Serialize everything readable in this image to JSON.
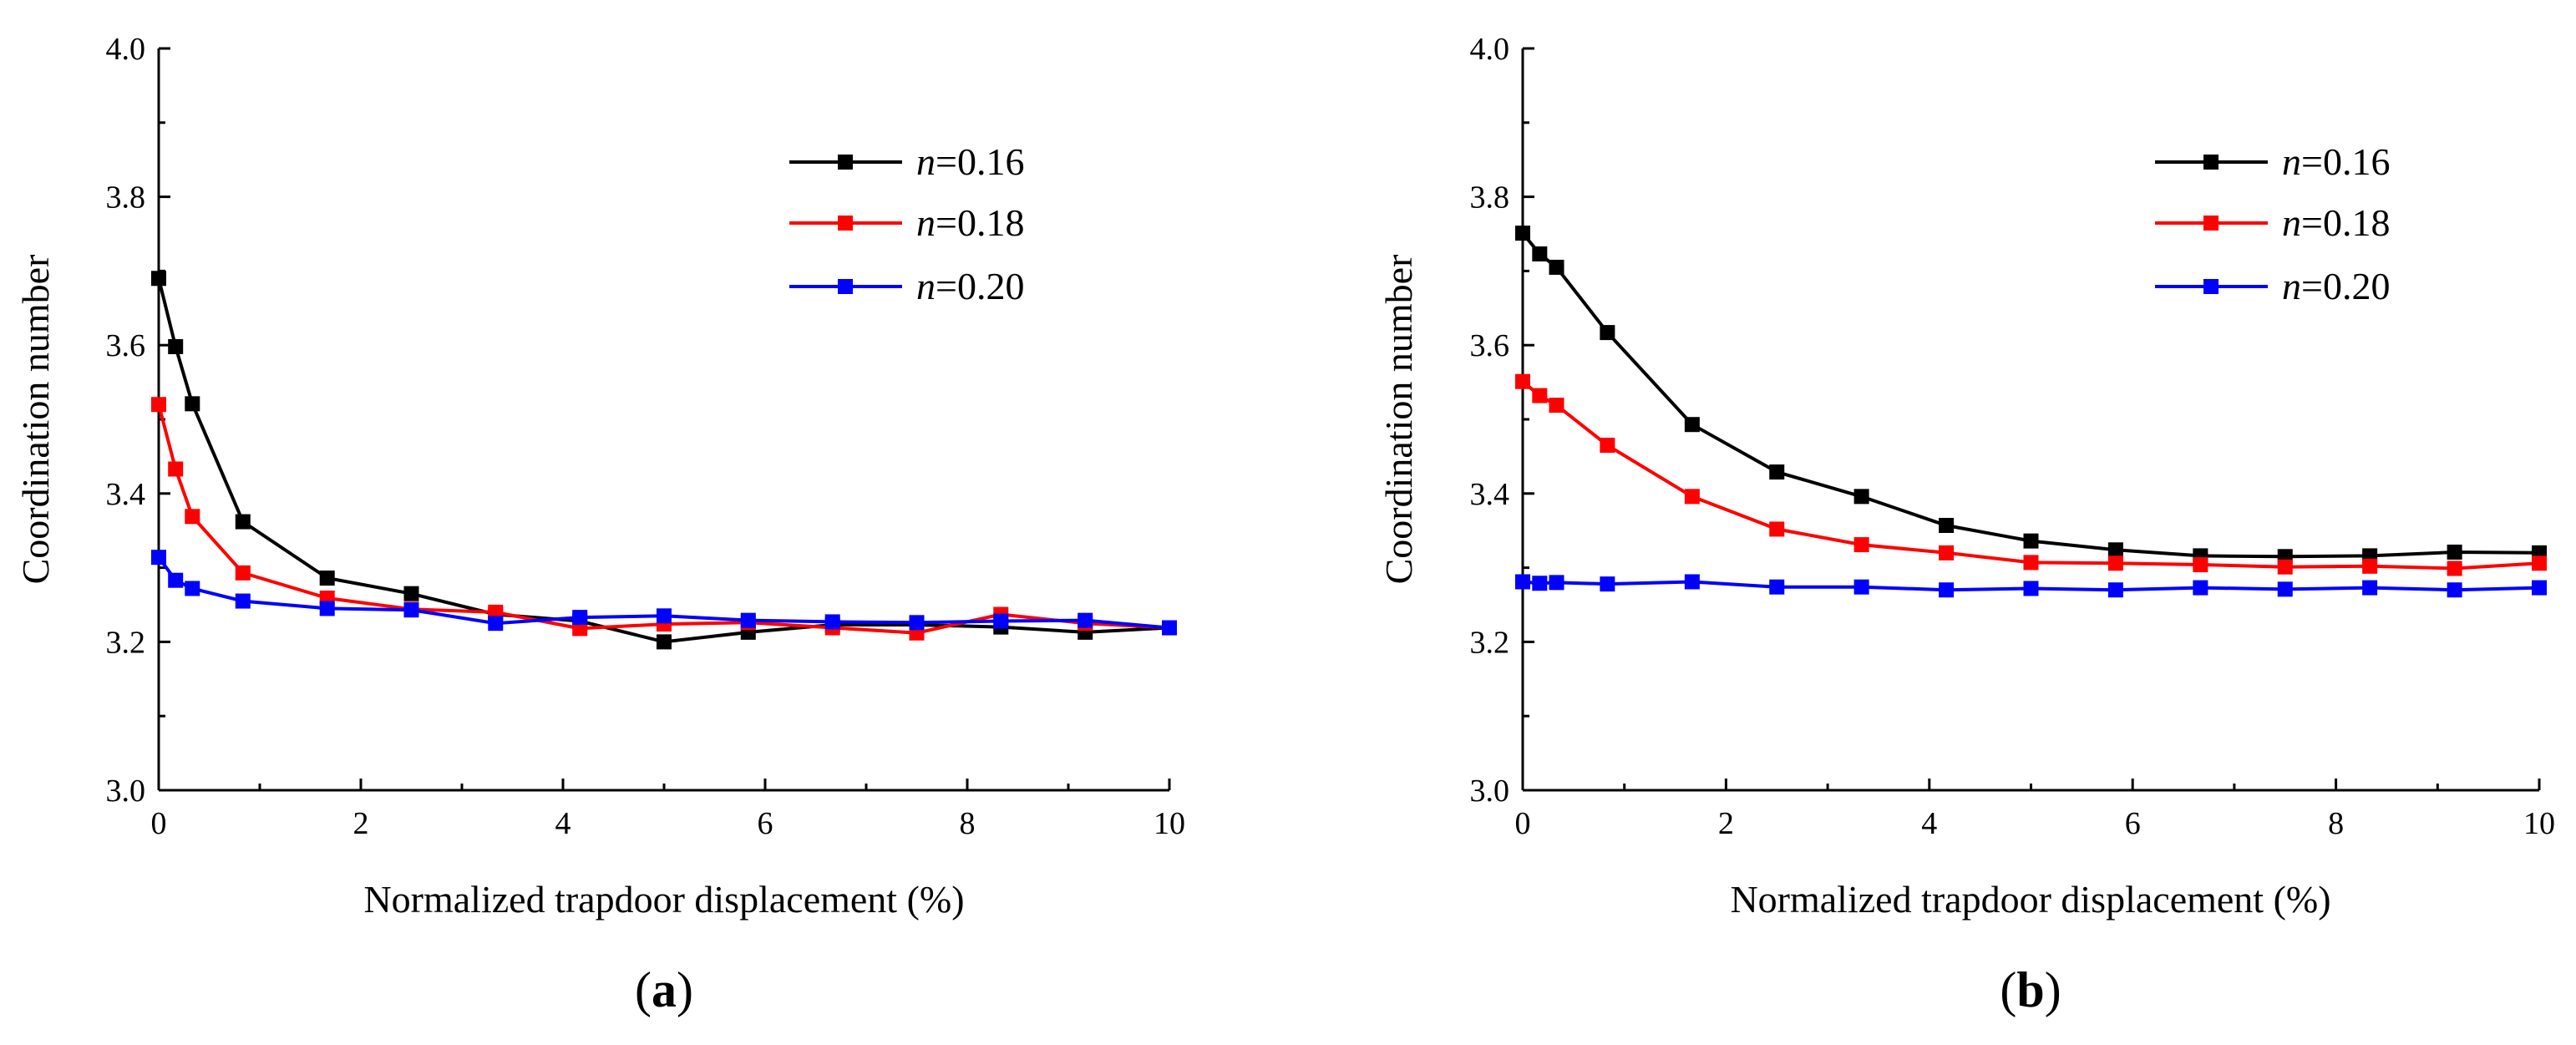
{
  "figure": {
    "panels": [
      {
        "label_open": "(",
        "label_letter": "a",
        "label_close": ")"
      },
      {
        "label_open": "(",
        "label_letter": "b",
        "label_close": ")"
      }
    ]
  },
  "chart_data": [
    {
      "type": "line",
      "panel": "a",
      "xlabel": "Normalized trapdoor displacement (%)",
      "ylabel": "Coordination number",
      "xlim": [
        0,
        10
      ],
      "ylim": [
        3.0,
        4.0
      ],
      "xticks": [
        "0",
        "2",
        "4",
        "6",
        "8",
        "10"
      ],
      "yticks": [
        "3.0",
        "3.2",
        "3.4",
        "3.6",
        "3.8",
        "4.0"
      ],
      "legend_position": "top-right",
      "series": [
        {
          "name_prefix": "n",
          "name_suffix": "=0.16",
          "color": "#000000",
          "x": [
            0,
            0.167,
            0.333,
            0.833,
            1.667,
            2.5,
            3.333,
            4.167,
            5.0,
            5.833,
            6.667,
            7.5,
            8.333,
            9.167,
            10.0
          ],
          "y": [
            3.69,
            3.598,
            3.521,
            3.362,
            3.286,
            3.265,
            3.237,
            3.228,
            3.2,
            3.213,
            3.223,
            3.223,
            3.22,
            3.213,
            3.219
          ]
        },
        {
          "name_prefix": "n",
          "name_suffix": "=0.18",
          "color": "#ff0000",
          "x": [
            0,
            0.167,
            0.333,
            0.833,
            1.667,
            2.5,
            3.333,
            4.167,
            5.0,
            5.833,
            6.667,
            7.5,
            8.333,
            9.167,
            10.0
          ],
          "y": [
            3.52,
            3.433,
            3.369,
            3.293,
            3.259,
            3.244,
            3.24,
            3.218,
            3.224,
            3.226,
            3.219,
            3.212,
            3.237,
            3.225,
            3.219
          ]
        },
        {
          "name_prefix": "n",
          "name_suffix": "=0.20",
          "color": "#0000ff",
          "x": [
            0,
            0.167,
            0.333,
            0.833,
            1.667,
            2.5,
            3.333,
            4.167,
            5.0,
            5.833,
            6.667,
            7.5,
            8.333,
            9.167,
            10.0
          ],
          "y": [
            3.314,
            3.283,
            3.272,
            3.255,
            3.245,
            3.243,
            3.225,
            3.233,
            3.235,
            3.229,
            3.227,
            3.226,
            3.228,
            3.229,
            3.219
          ]
        }
      ]
    },
    {
      "type": "line",
      "panel": "b",
      "xlabel": "Normalized trapdoor displacement (%)",
      "ylabel": "Coordination number",
      "xlim": [
        0,
        10
      ],
      "ylim": [
        3.0,
        4.0
      ],
      "xticks": [
        "0",
        "2",
        "4",
        "6",
        "8",
        "10"
      ],
      "yticks": [
        "3.0",
        "3.2",
        "3.4",
        "3.6",
        "3.8",
        "4.0"
      ],
      "legend_position": "top-right",
      "series": [
        {
          "name_prefix": "n",
          "name_suffix": "=0.16",
          "color": "#000000",
          "x": [
            0,
            0.167,
            0.333,
            0.833,
            1.667,
            2.5,
            3.333,
            4.167,
            5.0,
            5.833,
            6.667,
            7.5,
            8.333,
            9.167,
            10.0
          ],
          "y": [
            3.751,
            3.723,
            3.705,
            3.617,
            3.493,
            3.429,
            3.396,
            3.357,
            3.336,
            3.324,
            3.316,
            3.315,
            3.316,
            3.321,
            3.32
          ]
        },
        {
          "name_prefix": "n",
          "name_suffix": "=0.18",
          "color": "#ff0000",
          "x": [
            0,
            0.167,
            0.333,
            0.833,
            1.667,
            2.5,
            3.333,
            4.167,
            5.0,
            5.833,
            6.667,
            7.5,
            8.333,
            9.167,
            10.0
          ],
          "y": [
            3.551,
            3.532,
            3.519,
            3.465,
            3.396,
            3.352,
            3.331,
            3.32,
            3.307,
            3.306,
            3.304,
            3.301,
            3.302,
            3.299,
            3.306
          ]
        },
        {
          "name_prefix": "n",
          "name_suffix": "=0.20",
          "color": "#0000ff",
          "x": [
            0,
            0.167,
            0.333,
            0.833,
            1.667,
            2.5,
            3.333,
            4.167,
            5.0,
            5.833,
            6.667,
            7.5,
            8.333,
            9.167,
            10.0
          ],
          "y": [
            3.281,
            3.279,
            3.28,
            3.278,
            3.281,
            3.274,
            3.274,
            3.27,
            3.272,
            3.27,
            3.273,
            3.271,
            3.273,
            3.27,
            3.273
          ]
        }
      ]
    }
  ]
}
